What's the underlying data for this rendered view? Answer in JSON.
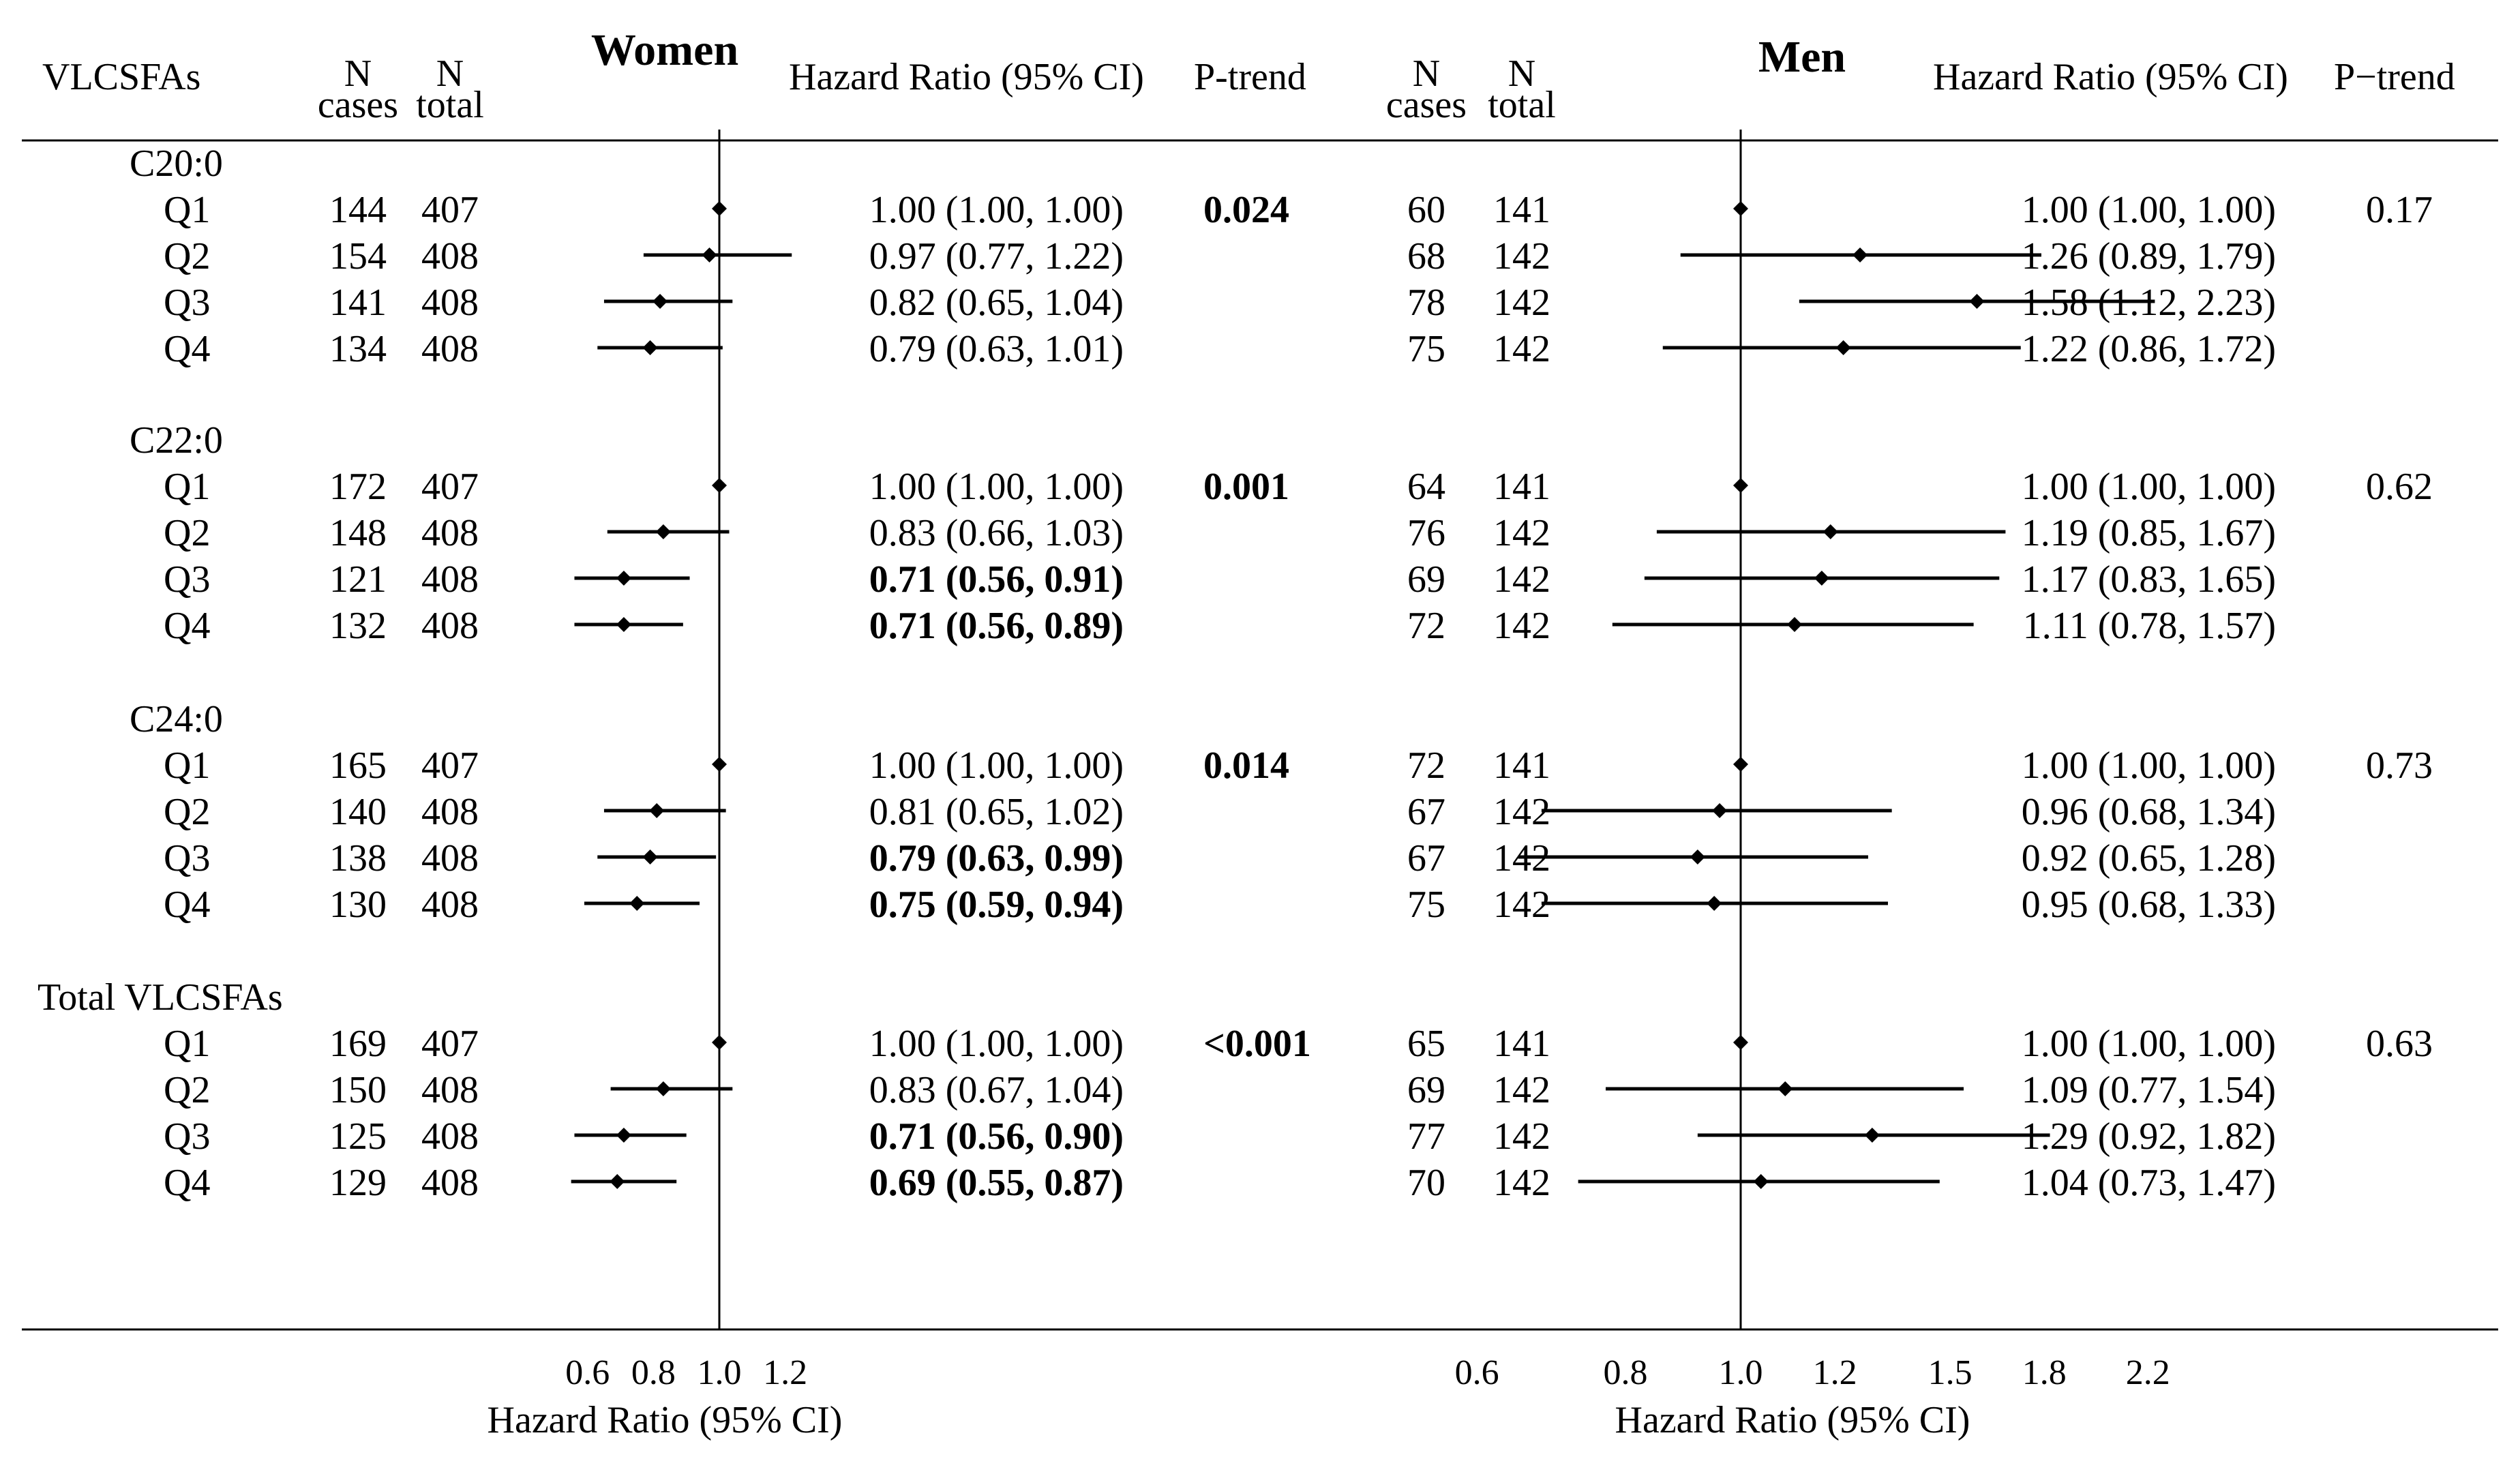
{
  "chart_data": {
    "type": "forest",
    "headers": {
      "group": "VLCSFAs",
      "n_cases": [
        "N",
        "cases"
      ],
      "n_total": [
        "N",
        "total"
      ],
      "hr": "Hazard Ratio (95% CI)",
      "ptrend_women": "P-trend",
      "ptrend_men": "P−trend"
    },
    "panels": [
      {
        "key": "women",
        "title": "Women",
        "x_label": "Hazard Ratio (95% CI)",
        "x_ticks": [
          0.6,
          0.8,
          1.0,
          1.2
        ],
        "x_tick_labels": [
          "0.6",
          "0.8",
          "1.0",
          "1.2"
        ],
        "xlim": [
          0.5,
          1.25
        ],
        "ref_line": 1.0
      },
      {
        "key": "men",
        "title": "Men",
        "x_label": "Hazard Ratio (95% CI)",
        "x_ticks": [
          0.6,
          0.8,
          1.0,
          1.2,
          1.5,
          1.8,
          2.2
        ],
        "x_tick_labels": [
          "0.6",
          "0.8",
          "1.0",
          "1.2",
          "1.5",
          "1.8",
          "2.2"
        ],
        "xlim": [
          0.5,
          2.3
        ],
        "ref_line": 1.0
      }
    ],
    "groups": [
      {
        "name": "C20:0",
        "women_ptrend": "0.024",
        "women_ptrend_bold": true,
        "men_ptrend": "0.17",
        "men_ptrend_bold": false,
        "rows": [
          {
            "label": "Q1",
            "women": {
              "cases": "144",
              "total": "407",
              "hr": 1.0,
              "lo": 1.0,
              "hi": 1.0,
              "text": "1.00 (1.00, 1.00)",
              "bold": false
            },
            "men": {
              "cases": "60",
              "total": "141",
              "hr": 1.0,
              "lo": 1.0,
              "hi": 1.0,
              "text": "1.00 (1.00, 1.00)",
              "bold": false
            }
          },
          {
            "label": "Q2",
            "women": {
              "cases": "154",
              "total": "408",
              "hr": 0.97,
              "lo": 0.77,
              "hi": 1.22,
              "text": "0.97 (0.77, 1.22)",
              "bold": false
            },
            "men": {
              "cases": "68",
              "total": "142",
              "hr": 1.26,
              "lo": 0.89,
              "hi": 1.79,
              "text": "1.26 (0.89, 1.79)",
              "bold": false
            }
          },
          {
            "label": "Q3",
            "women": {
              "cases": "141",
              "total": "408",
              "hr": 0.82,
              "lo": 0.65,
              "hi": 1.04,
              "text": "0.82 (0.65, 1.04)",
              "bold": false
            },
            "men": {
              "cases": "78",
              "total": "142",
              "hr": 1.58,
              "lo": 1.12,
              "hi": 2.23,
              "text": "1.58 (1.12, 2.23)",
              "bold": false
            }
          },
          {
            "label": "Q4",
            "women": {
              "cases": "134",
              "total": "408",
              "hr": 0.79,
              "lo": 0.63,
              "hi": 1.01,
              "text": "0.79 (0.63, 1.01)",
              "bold": false
            },
            "men": {
              "cases": "75",
              "total": "142",
              "hr": 1.22,
              "lo": 0.86,
              "hi": 1.72,
              "text": "1.22 (0.86, 1.72)",
              "bold": false
            }
          }
        ]
      },
      {
        "name": "C22:0",
        "women_ptrend": "0.001",
        "women_ptrend_bold": true,
        "men_ptrend": "0.62",
        "men_ptrend_bold": false,
        "rows": [
          {
            "label": "Q1",
            "women": {
              "cases": "172",
              "total": "407",
              "hr": 1.0,
              "lo": 1.0,
              "hi": 1.0,
              "text": "1.00 (1.00, 1.00)",
              "bold": false
            },
            "men": {
              "cases": "64",
              "total": "141",
              "hr": 1.0,
              "lo": 1.0,
              "hi": 1.0,
              "text": "1.00 (1.00, 1.00)",
              "bold": false
            }
          },
          {
            "label": "Q2",
            "women": {
              "cases": "148",
              "total": "408",
              "hr": 0.83,
              "lo": 0.66,
              "hi": 1.03,
              "text": "0.83 (0.66, 1.03)",
              "bold": false
            },
            "men": {
              "cases": "76",
              "total": "142",
              "hr": 1.19,
              "lo": 0.85,
              "hi": 1.67,
              "text": "1.19 (0.85, 1.67)",
              "bold": false
            }
          },
          {
            "label": "Q3",
            "women": {
              "cases": "121",
              "total": "408",
              "hr": 0.71,
              "lo": 0.56,
              "hi": 0.91,
              "text": "0.71 (0.56, 0.91)",
              "bold": true
            },
            "men": {
              "cases": "69",
              "total": "142",
              "hr": 1.17,
              "lo": 0.83,
              "hi": 1.65,
              "text": "1.17 (0.83, 1.65)",
              "bold": false
            }
          },
          {
            "label": "Q4",
            "women": {
              "cases": "132",
              "total": "408",
              "hr": 0.71,
              "lo": 0.56,
              "hi": 0.89,
              "text": "0.71 (0.56, 0.89)",
              "bold": true
            },
            "men": {
              "cases": "72",
              "total": "142",
              "hr": 1.11,
              "lo": 0.78,
              "hi": 1.57,
              "text": "1.11 (0.78, 1.57)",
              "bold": false
            }
          }
        ]
      },
      {
        "name": "C24:0",
        "women_ptrend": "0.014",
        "women_ptrend_bold": true,
        "men_ptrend": "0.73",
        "men_ptrend_bold": false,
        "rows": [
          {
            "label": "Q1",
            "women": {
              "cases": "165",
              "total": "407",
              "hr": 1.0,
              "lo": 1.0,
              "hi": 1.0,
              "text": "1.00 (1.00, 1.00)",
              "bold": false
            },
            "men": {
              "cases": "72",
              "total": "141",
              "hr": 1.0,
              "lo": 1.0,
              "hi": 1.0,
              "text": "1.00 (1.00, 1.00)",
              "bold": false
            }
          },
          {
            "label": "Q2",
            "women": {
              "cases": "140",
              "total": "408",
              "hr": 0.81,
              "lo": 0.65,
              "hi": 1.02,
              "text": "0.81 (0.65, 1.02)",
              "bold": false
            },
            "men": {
              "cases": "67",
              "total": "142",
              "hr": 0.96,
              "lo": 0.68,
              "hi": 1.34,
              "text": "0.96 (0.68, 1.34)",
              "bold": false
            }
          },
          {
            "label": "Q3",
            "women": {
              "cases": "138",
              "total": "408",
              "hr": 0.79,
              "lo": 0.63,
              "hi": 0.99,
              "text": "0.79 (0.63, 0.99)",
              "bold": true
            },
            "men": {
              "cases": "67",
              "total": "142",
              "hr": 0.92,
              "lo": 0.65,
              "hi": 1.28,
              "text": "0.92 (0.65, 1.28)",
              "bold": false
            }
          },
          {
            "label": "Q4",
            "women": {
              "cases": "130",
              "total": "408",
              "hr": 0.75,
              "lo": 0.59,
              "hi": 0.94,
              "text": "0.75 (0.59, 0.94)",
              "bold": true
            },
            "men": {
              "cases": "75",
              "total": "142",
              "hr": 0.95,
              "lo": 0.68,
              "hi": 1.33,
              "text": "0.95 (0.68, 1.33)",
              "bold": false
            }
          }
        ]
      },
      {
        "name": "Total VLCSFAs",
        "women_ptrend": "<0.001",
        "women_ptrend_bold": true,
        "men_ptrend": "0.63",
        "men_ptrend_bold": false,
        "rows": [
          {
            "label": "Q1",
            "women": {
              "cases": "169",
              "total": "407",
              "hr": 1.0,
              "lo": 1.0,
              "hi": 1.0,
              "text": "1.00 (1.00, 1.00)",
              "bold": false
            },
            "men": {
              "cases": "65",
              "total": "141",
              "hr": 1.0,
              "lo": 1.0,
              "hi": 1.0,
              "text": "1.00 (1.00, 1.00)",
              "bold": false
            }
          },
          {
            "label": "Q2",
            "women": {
              "cases": "150",
              "total": "408",
              "hr": 0.83,
              "lo": 0.67,
              "hi": 1.04,
              "text": "0.83 (0.67, 1.04)",
              "bold": false
            },
            "men": {
              "cases": "69",
              "total": "142",
              "hr": 1.09,
              "lo": 0.77,
              "hi": 1.54,
              "text": "1.09 (0.77, 1.54)",
              "bold": false
            }
          },
          {
            "label": "Q3",
            "women": {
              "cases": "125",
              "total": "408",
              "hr": 0.71,
              "lo": 0.56,
              "hi": 0.9,
              "text": "0.71 (0.56, 0.90)",
              "bold": true
            },
            "men": {
              "cases": "77",
              "total": "142",
              "hr": 1.29,
              "lo": 0.92,
              "hi": 1.82,
              "text": "1.29 (0.92, 1.82)",
              "bold": false
            }
          },
          {
            "label": "Q4",
            "women": {
              "cases": "129",
              "total": "408",
              "hr": 0.69,
              "lo": 0.55,
              "hi": 0.87,
              "text": "0.69 (0.55, 0.87)",
              "bold": true
            },
            "men": {
              "cases": "70",
              "total": "142",
              "hr": 1.04,
              "lo": 0.73,
              "hi": 1.47,
              "text": "1.04 (0.73, 1.47)",
              "bold": false
            }
          }
        ]
      }
    ]
  }
}
